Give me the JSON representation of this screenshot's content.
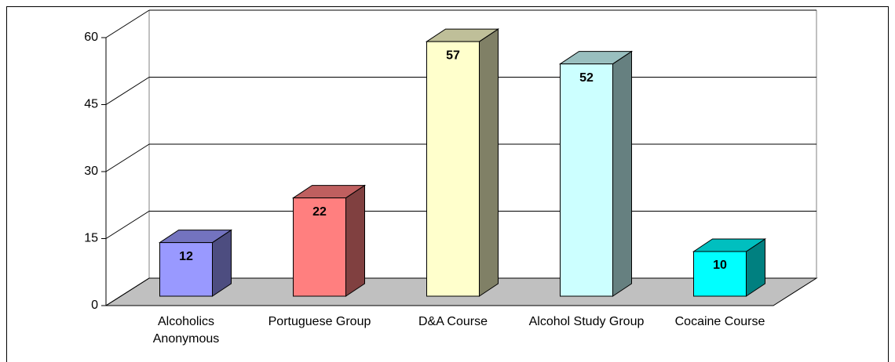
{
  "chart_data": {
    "type": "bar",
    "categories": [
      "Alcoholics Anonymous",
      "Portuguese Group",
      "D&A Course",
      "Alcohol Study Group",
      "Cocaine Course"
    ],
    "values": [
      12,
      22,
      57,
      52,
      10
    ],
    "colors": [
      "#9999ff",
      "#ff7f7f",
      "#ffffcc",
      "#ccffff",
      "#00ffff"
    ],
    "ylim": [
      0,
      60
    ],
    "yticks": [
      0,
      15,
      30,
      45,
      60
    ],
    "grid": true
  }
}
